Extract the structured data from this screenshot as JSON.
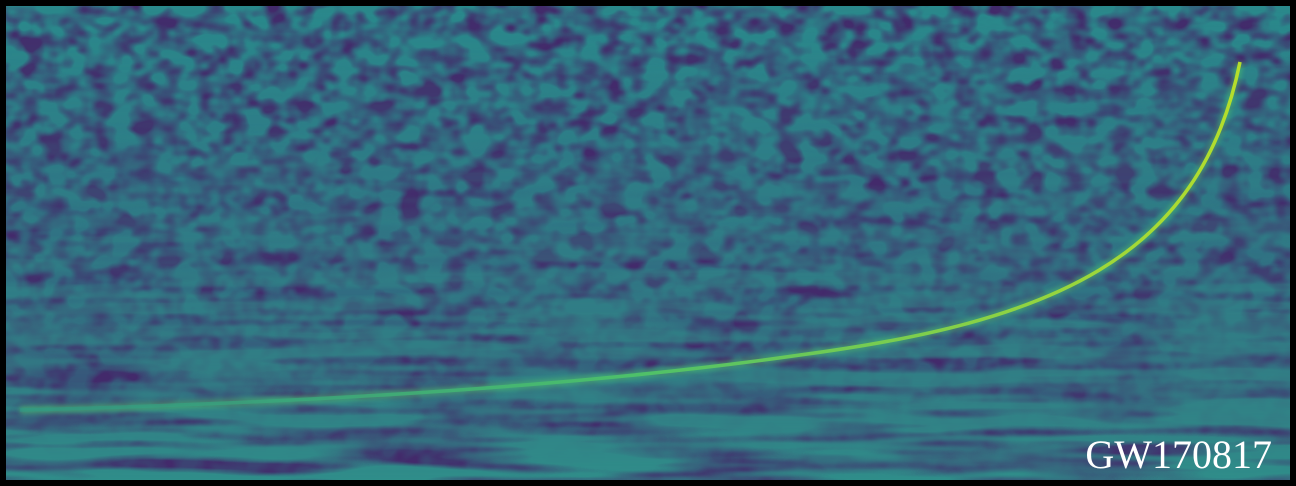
{
  "label": "GW170817"
}
